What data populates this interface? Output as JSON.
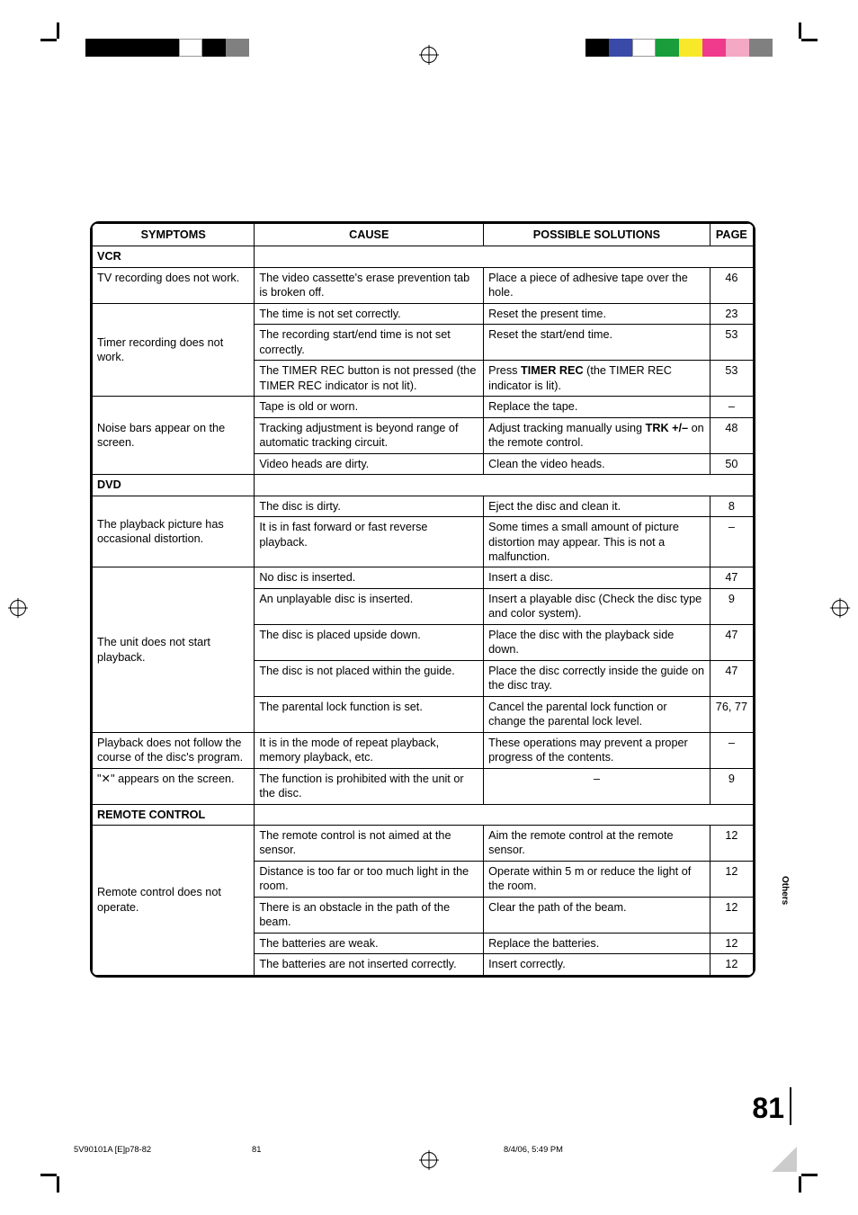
{
  "headers": {
    "symptoms": "SYMPTOMS",
    "cause": "CAUSE",
    "solutions": "POSSIBLE SOLUTIONS",
    "page": "PAGE"
  },
  "sections": {
    "vcr": "VCR",
    "dvd": "DVD",
    "remote": "REMOTE CONTROL"
  },
  "rows": {
    "tv_rec": {
      "symptom": "TV recording does not work.",
      "cause": "The video cassette's erase prevention tab is broken off.",
      "solution": "Place a piece of adhesive tape over the hole.",
      "page": "46"
    },
    "timer1": {
      "cause": "The time is not set correctly.",
      "solution": "Reset the present time.",
      "page": "23"
    },
    "timer2": {
      "symptom": "Timer recording does not work.",
      "cause": "The recording start/end time is not set correctly.",
      "solution": "Reset the start/end time.",
      "page": "53"
    },
    "timer3": {
      "cause": "The TIMER REC button is not pressed (the TIMER REC indicator is not lit).",
      "solution_pre": "Press ",
      "solution_bold": "TIMER REC",
      "solution_post": " (the TIMER REC indicator is lit).",
      "page": "53"
    },
    "noise1": {
      "cause": "Tape is old or worn.",
      "solution": "Replace the tape.",
      "page": "–"
    },
    "noise2": {
      "symptom": "Noise bars appear on the screen.",
      "cause": "Tracking adjustment is beyond range of automatic tracking circuit.",
      "solution_pre": "Adjust tracking manually using ",
      "solution_bold": "TRK +/–",
      "solution_post": " on the remote control.",
      "page": "48"
    },
    "noise3": {
      "cause": "Video heads are dirty.",
      "solution": "Clean the video heads.",
      "page": "50"
    },
    "distort1": {
      "cause": "The disc is dirty.",
      "solution": "Eject the disc and clean it.",
      "page": "8"
    },
    "distort2": {
      "symptom": "The playback picture has occasional distortion.",
      "cause": "It is in fast forward or fast reverse playback.",
      "solution": "Some times a small amount of picture distortion may appear. This is not a malfunction.",
      "page": "–"
    },
    "nostart1": {
      "cause": "No disc is inserted.",
      "solution": "Insert a disc.",
      "page": "47"
    },
    "nostart2": {
      "cause": "An unplayable disc is inserted.",
      "solution": "Insert a playable disc (Check the disc type and color system).",
      "page": "9"
    },
    "nostart3": {
      "symptom": "The unit does not start playback.",
      "cause": "The disc is placed upside down.",
      "solution": "Place the disc with the playback side down.",
      "page": "47"
    },
    "nostart4": {
      "cause": "The disc is not placed within the guide.",
      "solution": "Place the disc correctly inside the guide on the disc tray.",
      "page": "47"
    },
    "nostart5": {
      "cause": "The parental lock function is set.",
      "solution": "Cancel the parental lock function or change the parental lock level.",
      "page": "76, 77"
    },
    "playback_follow": {
      "symptom": "Playback does not follow the course of the disc's program.",
      "cause": "It is in the mode of repeat playback, memory playback, etc.",
      "solution": "These operations may prevent a proper progress of the contents.",
      "page": "–"
    },
    "x_screen": {
      "symptom": "\"✕\" appears on the screen.",
      "cause": "The function is prohibited with the unit or the disc.",
      "solution": "–",
      "page": "9"
    },
    "remote1": {
      "cause": "The remote control is not aimed at the sensor.",
      "solution": "Aim the remote control at the remote sensor.",
      "page": "12"
    },
    "remote2": {
      "cause": "Distance is too far or too much light in the room.",
      "solution": "Operate within 5 m or reduce  the light of the room.",
      "page": "12"
    },
    "remote3": {
      "symptom": "Remote control does not operate.",
      "cause": "There is an obstacle in the path of the beam.",
      "solution": "Clear the path of the beam.",
      "page": "12"
    },
    "remote4": {
      "cause": "The batteries are weak.",
      "solution": "Replace the batteries.",
      "page": "12"
    },
    "remote5": {
      "cause": "The batteries are not inserted correctly.",
      "solution": "Insert correctly.",
      "page": "12"
    }
  },
  "side_tab": "Others",
  "page_number": "81",
  "footer": {
    "left": "5V90101A [E]p78-82",
    "mid": "81",
    "right": "8/4/06, 5:49 PM"
  },
  "colors": {
    "left_bar": [
      "#000000",
      "#000000",
      "#000000",
      "#000000",
      "#FFFFFF",
      "#000000",
      "#808080"
    ],
    "right_bar": [
      "#000000",
      "#3a4aa8",
      "#FFFFFF",
      "#1a9e3c",
      "#f7e92a",
      "#f03a8c",
      "#f5a8c4",
      "#808080"
    ],
    "gray_segs": [
      "#000",
      "#333",
      "#555",
      "#777",
      "#999",
      "#bbb",
      "#ddd",
      "#fff"
    ]
  }
}
